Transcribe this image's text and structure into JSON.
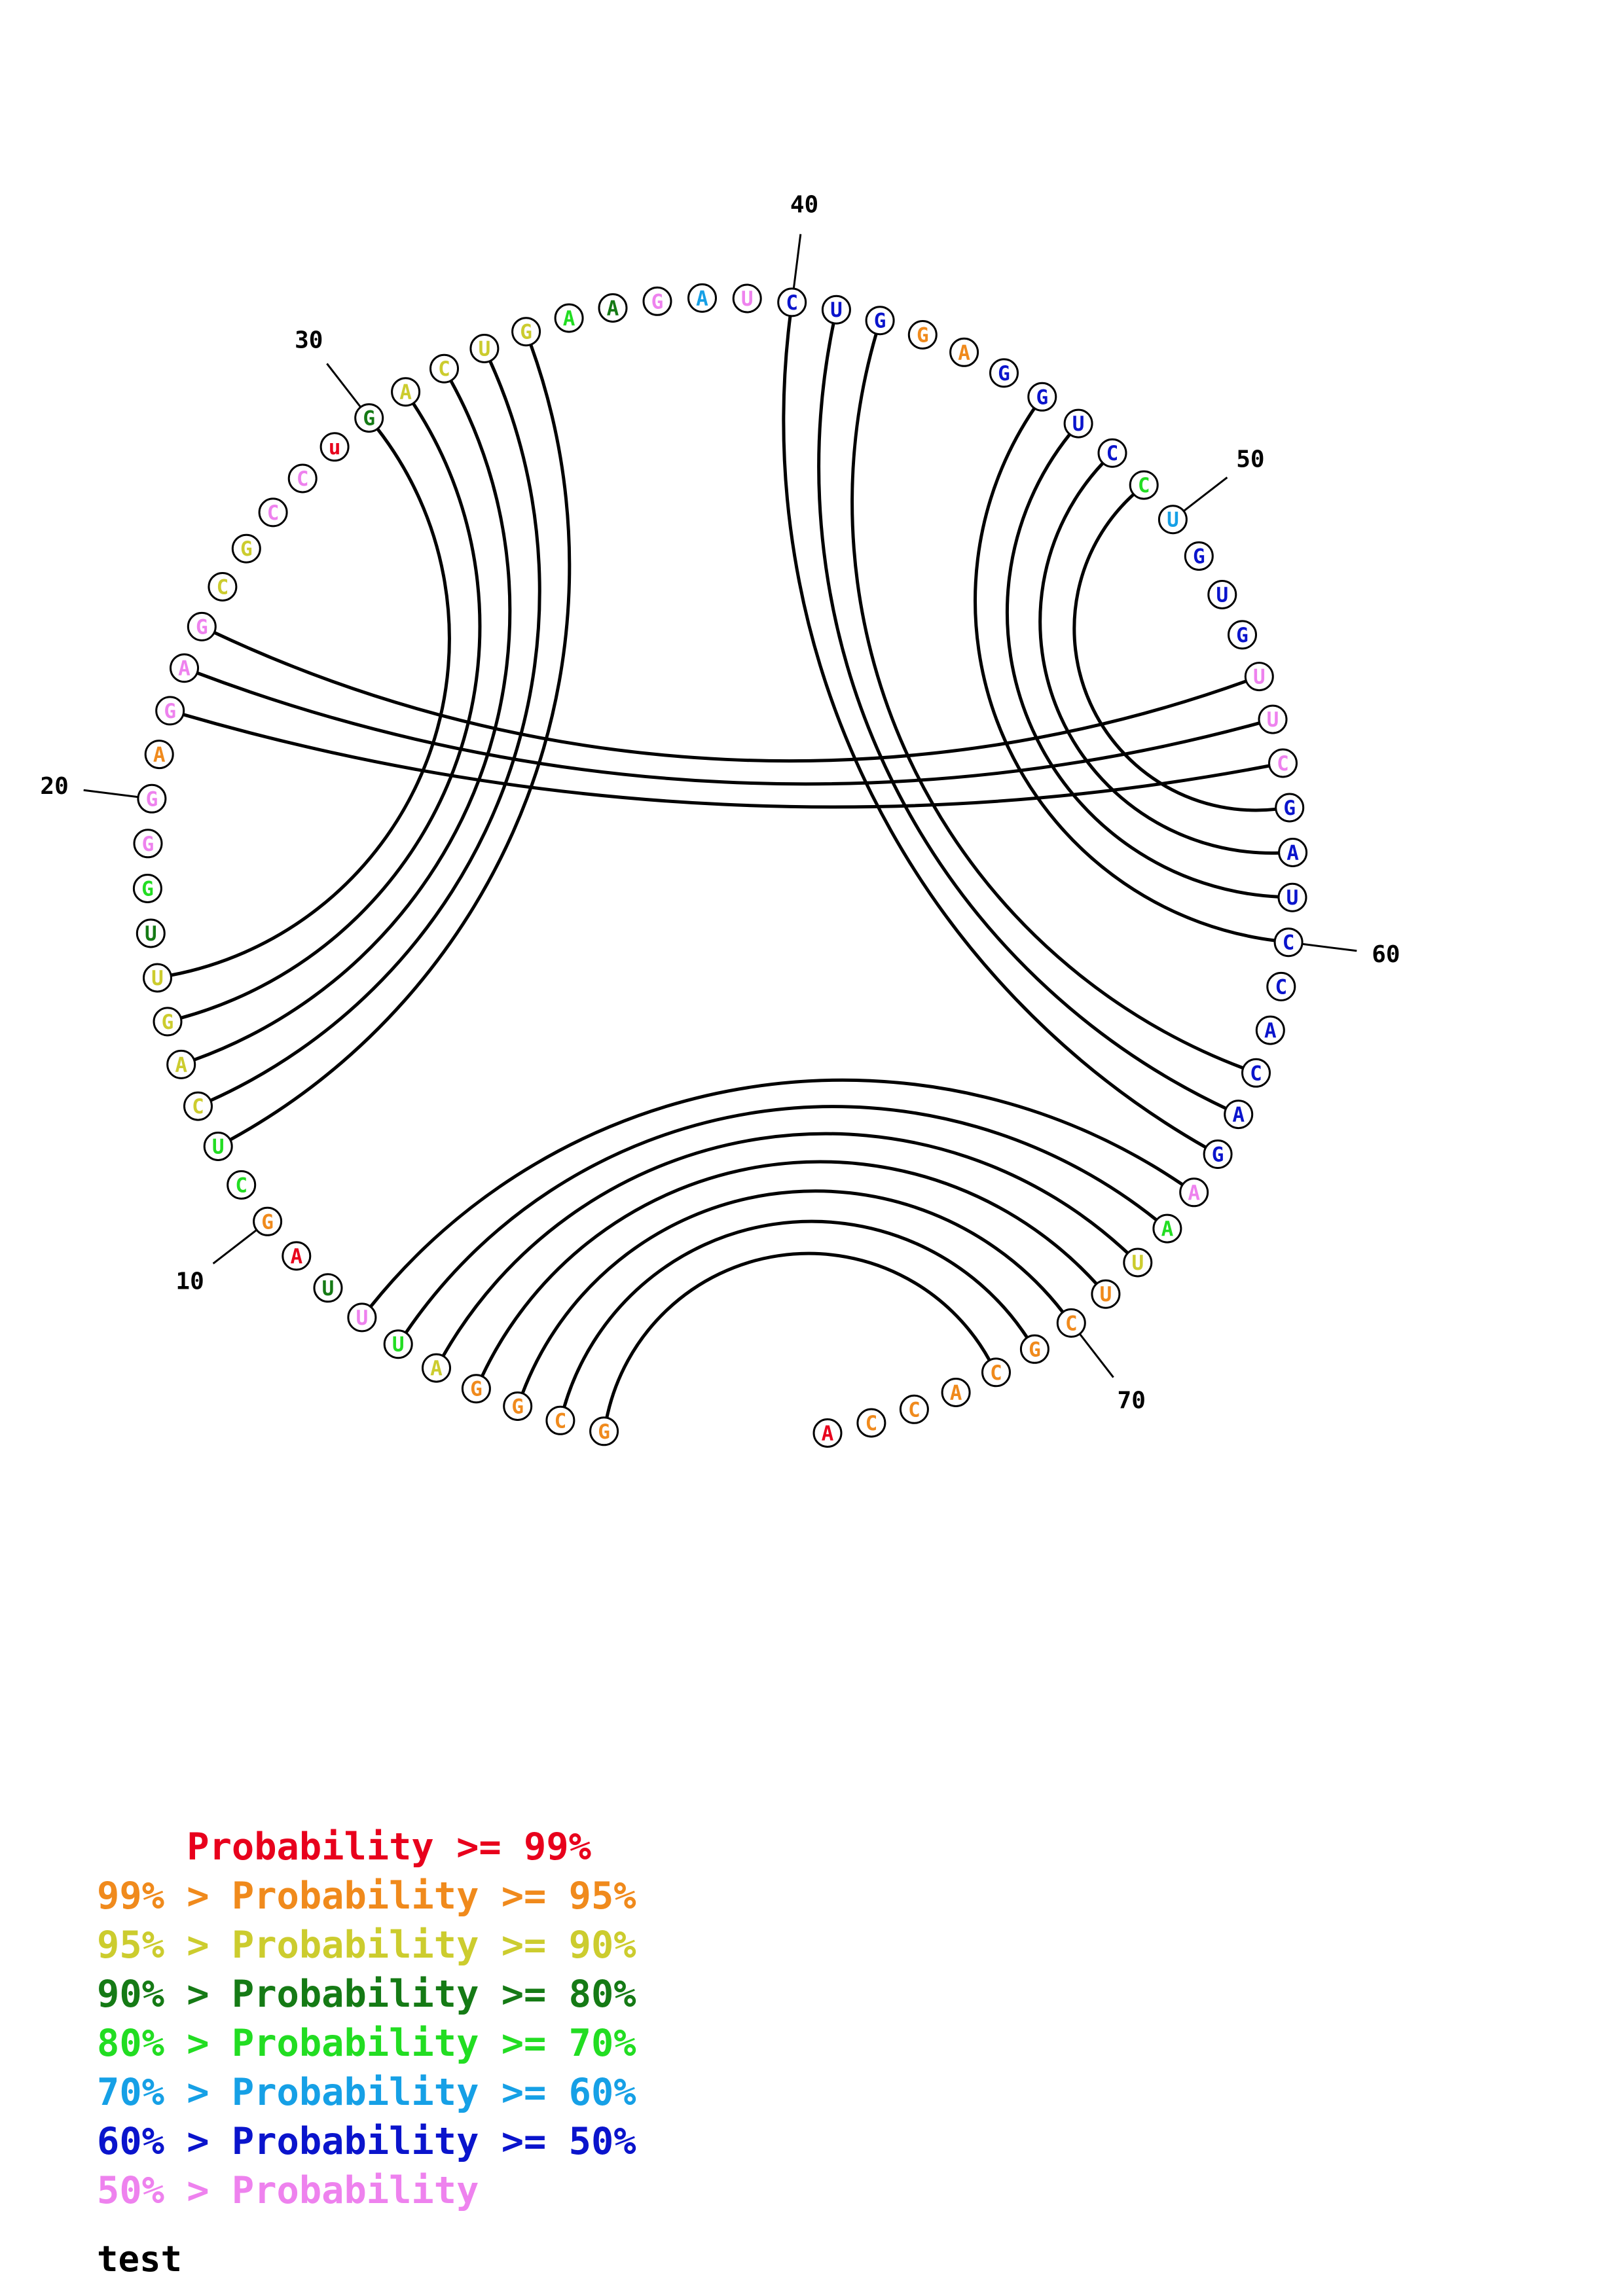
{
  "colors": {
    "p99": "#e8001c",
    "p95": "#f08a1c",
    "p90": "#cccc2e",
    "p80": "#157a15",
    "p70": "#22dd22",
    "p60": "#16a0e6",
    "p50": "#0a14cc",
    "plt50": "#ee82ee"
  },
  "sequence": [
    {
      "n": 1,
      "base": "G",
      "prob": "p95"
    },
    {
      "n": 2,
      "base": "C",
      "prob": "p95"
    },
    {
      "n": 3,
      "base": "G",
      "prob": "p95"
    },
    {
      "n": 4,
      "base": "G",
      "prob": "p95"
    },
    {
      "n": 5,
      "base": "A",
      "prob": "p90"
    },
    {
      "n": 6,
      "base": "U",
      "prob": "p70"
    },
    {
      "n": 7,
      "base": "U",
      "prob": "plt50"
    },
    {
      "n": 8,
      "base": "U",
      "prob": "p80"
    },
    {
      "n": 9,
      "base": "A",
      "prob": "p99"
    },
    {
      "n": 10,
      "base": "G",
      "prob": "p95"
    },
    {
      "n": 11,
      "base": "C",
      "prob": "p70"
    },
    {
      "n": 12,
      "base": "U",
      "prob": "p70"
    },
    {
      "n": 13,
      "base": "C",
      "prob": "p90"
    },
    {
      "n": 14,
      "base": "A",
      "prob": "p90"
    },
    {
      "n": 15,
      "base": "G",
      "prob": "p90"
    },
    {
      "n": 16,
      "base": "U",
      "prob": "p90"
    },
    {
      "n": 17,
      "base": "U",
      "prob": "p80"
    },
    {
      "n": 18,
      "base": "G",
      "prob": "p70"
    },
    {
      "n": 19,
      "base": "G",
      "prob": "plt50"
    },
    {
      "n": 20,
      "base": "G",
      "prob": "plt50"
    },
    {
      "n": 21,
      "base": "A",
      "prob": "p95"
    },
    {
      "n": 22,
      "base": "G",
      "prob": "plt50"
    },
    {
      "n": 23,
      "base": "A",
      "prob": "plt50"
    },
    {
      "n": 24,
      "base": "G",
      "prob": "plt50"
    },
    {
      "n": 25,
      "base": "C",
      "prob": "p90"
    },
    {
      "n": 26,
      "base": "G",
      "prob": "p90"
    },
    {
      "n": 27,
      "base": "C",
      "prob": "plt50"
    },
    {
      "n": 28,
      "base": "C",
      "prob": "plt50"
    },
    {
      "n": 29,
      "base": "u",
      "prob": "p99"
    },
    {
      "n": 30,
      "base": "G",
      "prob": "p80"
    },
    {
      "n": 31,
      "base": "A",
      "prob": "p90"
    },
    {
      "n": 32,
      "base": "C",
      "prob": "p90"
    },
    {
      "n": 33,
      "base": "U",
      "prob": "p90"
    },
    {
      "n": 34,
      "base": "G",
      "prob": "p90"
    },
    {
      "n": 35,
      "base": "A",
      "prob": "p70"
    },
    {
      "n": 36,
      "base": "A",
      "prob": "p80"
    },
    {
      "n": 37,
      "base": "G",
      "prob": "plt50"
    },
    {
      "n": 38,
      "base": "A",
      "prob": "p60"
    },
    {
      "n": 39,
      "base": "U",
      "prob": "plt50"
    },
    {
      "n": 40,
      "base": "C",
      "prob": "p50"
    },
    {
      "n": 41,
      "base": "U",
      "prob": "p50"
    },
    {
      "n": 42,
      "base": "G",
      "prob": "p50"
    },
    {
      "n": 43,
      "base": "G",
      "prob": "p95"
    },
    {
      "n": 44,
      "base": "A",
      "prob": "p95"
    },
    {
      "n": 45,
      "base": "G",
      "prob": "p50"
    },
    {
      "n": 46,
      "base": "G",
      "prob": "p50"
    },
    {
      "n": 47,
      "base": "U",
      "prob": "p50"
    },
    {
      "n": 48,
      "base": "C",
      "prob": "p50"
    },
    {
      "n": 49,
      "base": "C",
      "prob": "p70"
    },
    {
      "n": 50,
      "base": "U",
      "prob": "p60"
    },
    {
      "n": 51,
      "base": "G",
      "prob": "p50"
    },
    {
      "n": 52,
      "base": "U",
      "prob": "p50"
    },
    {
      "n": 53,
      "base": "G",
      "prob": "p50"
    },
    {
      "n": 54,
      "base": "U",
      "prob": "plt50"
    },
    {
      "n": 55,
      "base": "U",
      "prob": "plt50"
    },
    {
      "n": 56,
      "base": "C",
      "prob": "plt50"
    },
    {
      "n": 57,
      "base": "G",
      "prob": "p50"
    },
    {
      "n": 58,
      "base": "A",
      "prob": "p50"
    },
    {
      "n": 59,
      "base": "U",
      "prob": "p50"
    },
    {
      "n": 60,
      "base": "C",
      "prob": "p50"
    },
    {
      "n": 61,
      "base": "C",
      "prob": "p50"
    },
    {
      "n": 62,
      "base": "A",
      "prob": "p50"
    },
    {
      "n": 63,
      "base": "C",
      "prob": "p50"
    },
    {
      "n": 64,
      "base": "A",
      "prob": "p50"
    },
    {
      "n": 65,
      "base": "G",
      "prob": "p50"
    },
    {
      "n": 66,
      "base": "A",
      "prob": "plt50"
    },
    {
      "n": 67,
      "base": "A",
      "prob": "p70"
    },
    {
      "n": 68,
      "base": "U",
      "prob": "p90"
    },
    {
      "n": 69,
      "base": "U",
      "prob": "p95"
    },
    {
      "n": 70,
      "base": "C",
      "prob": "p95"
    },
    {
      "n": 71,
      "base": "G",
      "prob": "p95"
    },
    {
      "n": 72,
      "base": "C",
      "prob": "p95"
    },
    {
      "n": 73,
      "base": "A",
      "prob": "p95"
    },
    {
      "n": 74,
      "base": "C",
      "prob": "p95"
    },
    {
      "n": 75,
      "base": "C",
      "prob": "p95"
    },
    {
      "n": 76,
      "base": "A",
      "prob": "p99"
    }
  ],
  "pairs": [
    [
      1,
      72
    ],
    [
      2,
      71
    ],
    [
      3,
      70
    ],
    [
      4,
      69
    ],
    [
      5,
      68
    ],
    [
      6,
      67
    ],
    [
      7,
      66
    ],
    [
      12,
      34
    ],
    [
      13,
      33
    ],
    [
      14,
      32
    ],
    [
      15,
      31
    ],
    [
      16,
      30
    ],
    [
      22,
      56
    ],
    [
      23,
      55
    ],
    [
      24,
      54
    ],
    [
      40,
      65
    ],
    [
      41,
      64
    ],
    [
      42,
      63
    ],
    [
      46,
      60
    ],
    [
      47,
      59
    ],
    [
      48,
      58
    ],
    [
      49,
      57
    ]
  ],
  "tick_labels": [
    {
      "n": 10,
      "text": "10"
    },
    {
      "n": 20,
      "text": "20"
    },
    {
      "n": 30,
      "text": "30"
    },
    {
      "n": 40,
      "text": "40"
    },
    {
      "n": 50,
      "text": "50"
    },
    {
      "n": 60,
      "text": "60"
    },
    {
      "n": 70,
      "text": "70"
    }
  ],
  "legend": [
    {
      "prefix": "    ",
      "text": "Probability >= 99%",
      "color": "#e8001c"
    },
    {
      "prefix": "99% > ",
      "text": "Probability >= 95%",
      "color": "#f08a1c"
    },
    {
      "prefix": "95% > ",
      "text": "Probability >= 90%",
      "color": "#cccc2e"
    },
    {
      "prefix": "90% > ",
      "text": "Probability >= 80%",
      "color": "#157a15"
    },
    {
      "prefix": "80% > ",
      "text": "Probability >= 70%",
      "color": "#22dd22"
    },
    {
      "prefix": "70% > ",
      "text": "Probability >= 60%",
      "color": "#16a0e6"
    },
    {
      "prefix": "60% > ",
      "text": "Probability >= 50%",
      "color": "#0a14cc"
    },
    {
      "prefix": "50% > ",
      "text": "Probability",
      "color": "#ee82ee"
    }
  ],
  "caption": "test"
}
